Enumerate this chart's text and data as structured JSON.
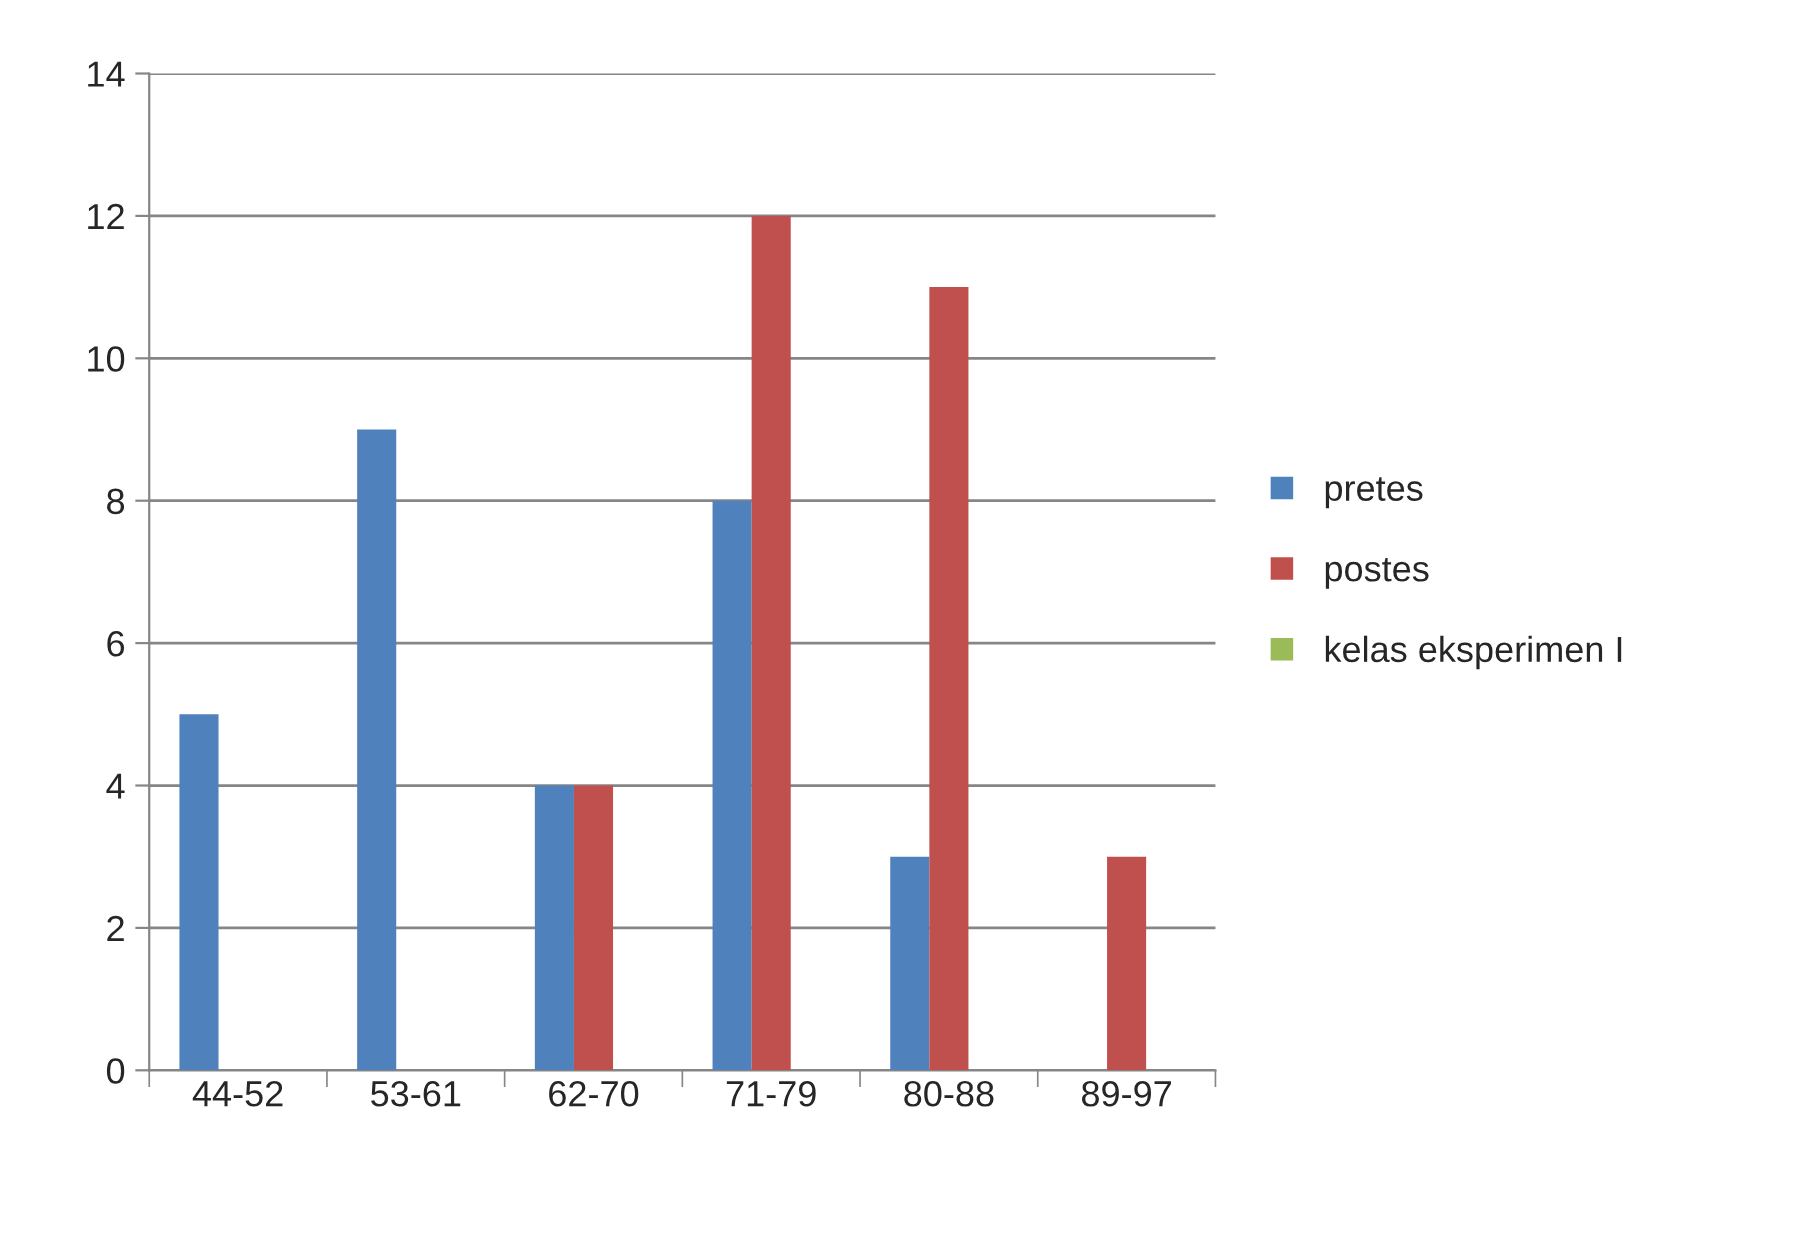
{
  "chart_data": {
    "type": "bar",
    "categories": [
      "44-52",
      "53-61",
      "62-70",
      "71-79",
      "80-88",
      "89-97"
    ],
    "series": [
      {
        "name": "pretes",
        "color": "#4f81bd",
        "values": [
          5,
          9,
          4,
          8,
          3,
          null
        ]
      },
      {
        "name": "postes",
        "color": "#c0504d",
        "values": [
          null,
          null,
          4,
          12,
          11,
          3
        ]
      },
      {
        "name": "kelas eksperimen I",
        "color": "#9bbb59",
        "values": [
          null,
          null,
          null,
          null,
          null,
          null
        ]
      }
    ],
    "ylim": [
      0,
      14
    ],
    "yticks": [
      0,
      2,
      4,
      6,
      8,
      10,
      12,
      14
    ],
    "grid": "y",
    "legend": "right"
  }
}
